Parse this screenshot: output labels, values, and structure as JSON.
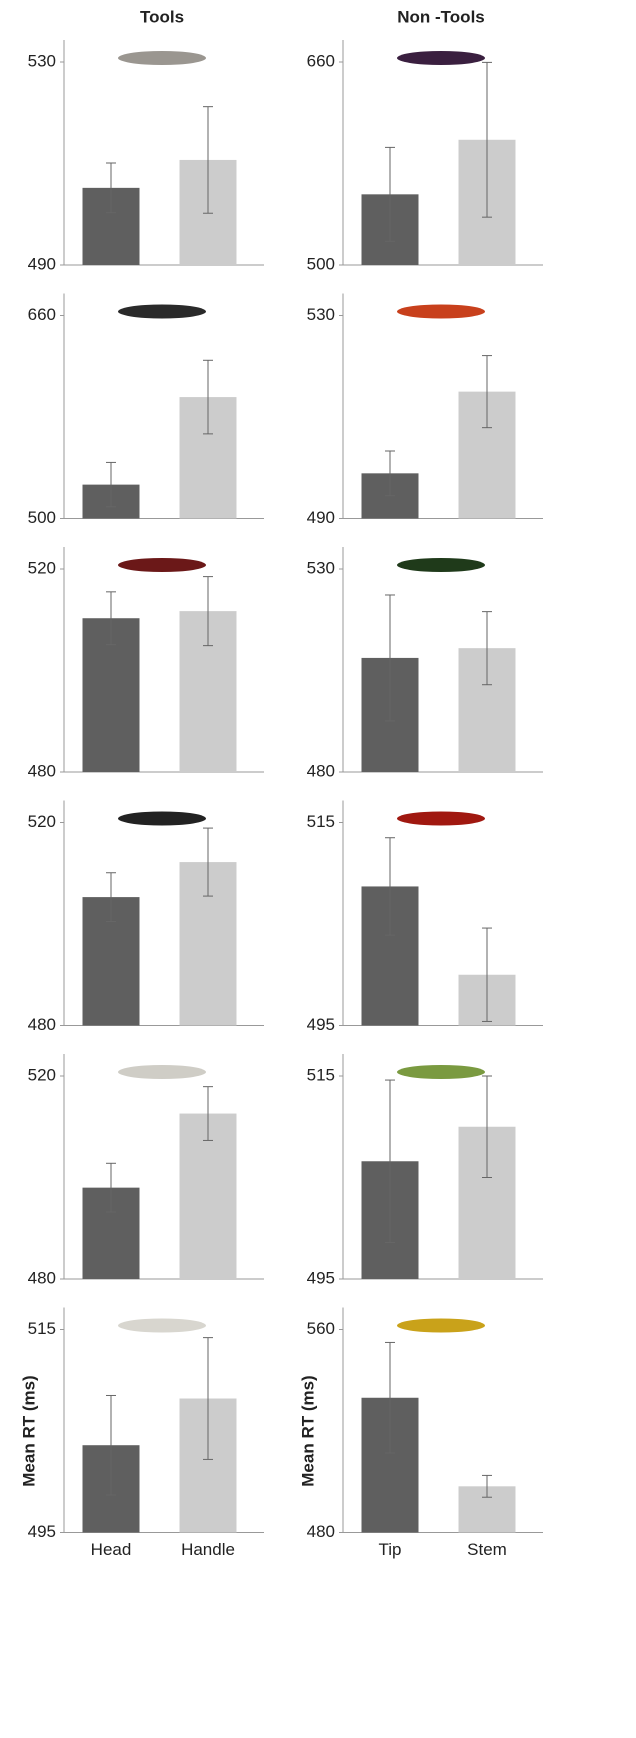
{
  "chart_data": [
    {
      "type": "bar",
      "title": "Tools",
      "categories": [
        null,
        null
      ],
      "values": [
        505.2,
        510.7
      ],
      "errors": [
        4.9,
        10.5
      ],
      "colors": [
        "#5f5f5f",
        "#cccccc"
      ],
      "ylim": [
        490,
        530
      ],
      "yticks": [
        490,
        530
      ]
    },
    {
      "type": "bar",
      "title": "Non -Tools",
      "categories": [
        null,
        null
      ],
      "values": [
        555.7,
        598.7
      ],
      "errors": [
        37,
        61
      ],
      "colors": [
        "#5f5f5f",
        "#cccccc"
      ],
      "ylim": [
        500,
        660
      ],
      "yticks": [
        500,
        660
      ]
    },
    {
      "type": "bar",
      "categories": [
        null,
        null
      ],
      "values": [
        526.7,
        595.7
      ],
      "errors": [
        17.5,
        29
      ],
      "colors": [
        "#5f5f5f",
        "#cccccc"
      ],
      "ylim": [
        500,
        660
      ],
      "yticks": [
        500,
        660
      ]
    },
    {
      "type": "bar",
      "categories": [
        null,
        null
      ],
      "values": [
        498.9,
        515
      ],
      "errors": [
        4.4,
        7.1
      ],
      "colors": [
        "#5f5f5f",
        "#cccccc"
      ],
      "ylim": [
        490,
        530
      ],
      "yticks": [
        490,
        530
      ]
    },
    {
      "type": "bar",
      "categories": [
        null,
        null
      ],
      "values": [
        510.3,
        511.7
      ],
      "errors": [
        5.2,
        6.8
      ],
      "colors": [
        "#5f5f5f",
        "#cccccc"
      ],
      "ylim": [
        480,
        520
      ],
      "yticks": [
        480,
        520
      ]
    },
    {
      "type": "bar",
      "categories": [
        null,
        null
      ],
      "values": [
        508.1,
        510.5
      ],
      "errors": [
        15.5,
        9
      ],
      "colors": [
        "#5f5f5f",
        "#cccccc"
      ],
      "ylim": [
        480,
        530
      ],
      "yticks": [
        480,
        530
      ]
    },
    {
      "type": "bar",
      "categories": [
        null,
        null
      ],
      "values": [
        505.3,
        512.2
      ],
      "errors": [
        4.8,
        6.7
      ],
      "colors": [
        "#5f5f5f",
        "#cccccc"
      ],
      "ylim": [
        480,
        520
      ],
      "yticks": [
        480,
        520
      ]
    },
    {
      "type": "bar",
      "categories": [
        null,
        null
      ],
      "values": [
        508.7,
        500
      ],
      "errors": [
        4.8,
        4.6
      ],
      "colors": [
        "#5f5f5f",
        "#cccccc"
      ],
      "ylim": [
        495,
        515
      ],
      "yticks": [
        495,
        515
      ]
    },
    {
      "type": "bar",
      "categories": [
        null,
        null
      ],
      "values": [
        498,
        512.6
      ],
      "errors": [
        4.8,
        5.3
      ],
      "colors": [
        "#5f5f5f",
        "#cccccc"
      ],
      "ylim": [
        480,
        520
      ],
      "yticks": [
        480,
        520
      ]
    },
    {
      "type": "bar",
      "categories": [
        null,
        null
      ],
      "values": [
        506.6,
        510
      ],
      "errors": [
        8,
        5
      ],
      "colors": [
        "#5f5f5f",
        "#cccccc"
      ],
      "ylim": [
        495,
        515
      ],
      "yticks": [
        495,
        515
      ]
    },
    {
      "type": "bar",
      "ylabel": "Mean RT (ms)",
      "categories": [
        "Head",
        "Handle"
      ],
      "values": [
        503.6,
        508.2
      ],
      "errors": [
        4.9,
        6
      ],
      "colors": [
        "#5f5f5f",
        "#cccccc"
      ],
      "ylim": [
        495,
        515
      ],
      "yticks": [
        495,
        515
      ]
    },
    {
      "type": "bar",
      "ylabel": "Mean RT (ms)",
      "categories": [
        "Tip",
        "Stem"
      ],
      "values": [
        533.1,
        498.2
      ],
      "errors": [
        21.8,
        4.3
      ],
      "colors": [
        "#5f5f5f",
        "#cccccc"
      ],
      "ylim": [
        480,
        560
      ],
      "yticks": [
        480,
        560
      ]
    }
  ]
}
